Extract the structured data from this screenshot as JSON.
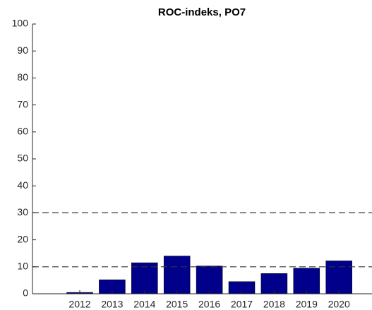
{
  "chart_data": {
    "type": "bar",
    "title": "ROC-indeks, PO7",
    "categories": [
      "2012",
      "2013",
      "2014",
      "2015",
      "2016",
      "2017",
      "2018",
      "2019",
      "2020"
    ],
    "values": [
      0.5,
      5.2,
      11.5,
      14,
      10.3,
      4.5,
      7.5,
      9.5,
      12.2
    ],
    "color": "#00008b",
    "ylim": [
      0,
      100
    ],
    "yticks": [
      0,
      10,
      20,
      30,
      40,
      50,
      60,
      70,
      80,
      90,
      100
    ],
    "reference_lines": [
      10,
      30
    ],
    "grid": false
  }
}
